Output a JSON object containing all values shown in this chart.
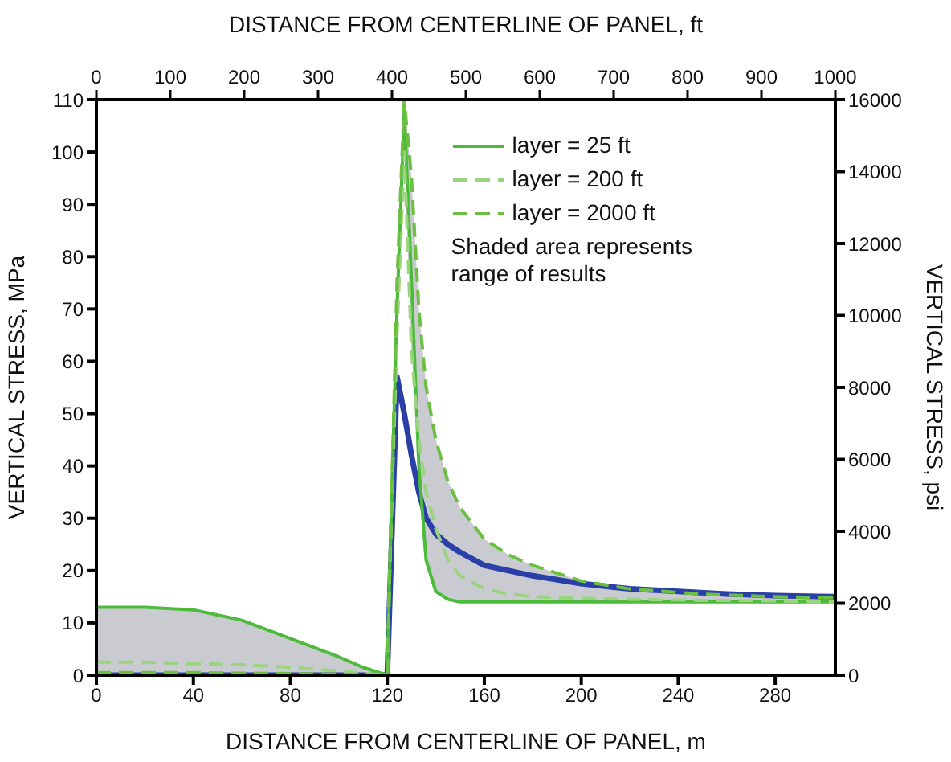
{
  "chart_data": {
    "type": "line",
    "xlabel": "DISTANCE FROM CENTERLINE OF PANEL, m",
    "x2label": "DISTANCE FROM CENTERLINE OF PANEL, ft",
    "ylabel": "VERTICAL STRESS, MPa",
    "y2label": "VERTICAL STRESS, psi",
    "xlim": [
      0,
      304.8
    ],
    "xticks": [
      0,
      40,
      80,
      120,
      160,
      200,
      240,
      280
    ],
    "x2lim": [
      0,
      1000
    ],
    "x2ticks": [
      0,
      100,
      200,
      300,
      400,
      500,
      600,
      700,
      800,
      900,
      1000
    ],
    "ylim": [
      0,
      110
    ],
    "yticks": [
      0,
      10,
      20,
      30,
      40,
      50,
      60,
      70,
      80,
      90,
      100,
      110
    ],
    "y2lim": [
      0,
      16000
    ],
    "y2ticks": [
      0,
      2000,
      4000,
      6000,
      8000,
      10000,
      12000,
      14000,
      16000
    ],
    "grid": false,
    "legend": "top right",
    "marker": "none",
    "annotations": [
      "Shaded area represents range of results"
    ],
    "series": [
      {
        "color": "#2b3fa8",
        "line_style": "solid",
        "x": [
          0,
          120,
          124,
          127,
          130,
          133,
          136,
          140,
          145,
          150,
          160,
          170,
          180,
          200,
          220,
          240,
          260,
          280,
          304.8
        ],
        "values": [
          0,
          0,
          57,
          50,
          42,
          35,
          30,
          27,
          25,
          23.5,
          21,
          20,
          19,
          17.5,
          16.5,
          16,
          15.5,
          15.2,
          15
        ]
      },
      {
        "name": "layer = 25 ft",
        "color": "#4cbb3a",
        "line_style": "solid",
        "x": [
          0,
          20,
          40,
          60,
          80,
          100,
          110,
          120,
          121,
          124,
          127,
          130,
          133,
          136,
          140,
          145,
          150,
          160,
          170,
          180,
          200,
          220,
          250,
          280,
          304.8
        ],
        "values": [
          13,
          13,
          12.5,
          10.5,
          7,
          3.5,
          1.5,
          0,
          20,
          70,
          108,
          75,
          40,
          22,
          16,
          14.5,
          14,
          14,
          14,
          14,
          14,
          14,
          14,
          14,
          14
        ]
      },
      {
        "name": "layer = 200 ft",
        "color": "#9ad47e",
        "line_style": "dashed",
        "x": [
          0,
          20,
          40,
          60,
          80,
          100,
          110,
          120,
          121,
          124,
          127,
          130,
          133,
          136,
          140,
          145,
          150,
          160,
          170,
          180,
          200,
          220,
          250,
          280,
          304.8
        ],
        "values": [
          2.5,
          2.5,
          2.2,
          2,
          1.5,
          0.8,
          0.4,
          0,
          20,
          65,
          100,
          62,
          45,
          35,
          28,
          22,
          19,
          16.5,
          15.5,
          15,
          14.7,
          14.5,
          14.3,
          14.2,
          14
        ],
        "lower": [
          0.5,
          0.5,
          0.5,
          0.4,
          0.3,
          0.2,
          0.1,
          0,
          20,
          65,
          100,
          62,
          40,
          22,
          16,
          14.5,
          14,
          14,
          14,
          14,
          14,
          14,
          14,
          14,
          14
        ],
        "upper": [
          13,
          13,
          12.5,
          10.5,
          7,
          3.5,
          1.5,
          0,
          20,
          75,
          110,
          95,
          70,
          55,
          45,
          37,
          32,
          26,
          23,
          21,
          18,
          16.5,
          15.5,
          15,
          14.8
        ]
      },
      {
        "name": "layer = 2000 ft",
        "color": "#6cc040",
        "line_style": "dashed",
        "x": [
          0,
          20,
          40,
          60,
          80,
          100,
          110,
          120,
          121,
          124,
          127,
          130,
          133,
          136,
          140,
          145,
          150,
          160,
          170,
          180,
          200,
          220,
          250,
          280,
          304.8
        ],
        "values": [
          0.5,
          0.5,
          0.5,
          0.4,
          0.3,
          0.2,
          0.1,
          0,
          20,
          75,
          110,
          95,
          70,
          55,
          45,
          37,
          32,
          26,
          23,
          21,
          18,
          16.5,
          15.5,
          15,
          14.8
        ]
      }
    ]
  }
}
